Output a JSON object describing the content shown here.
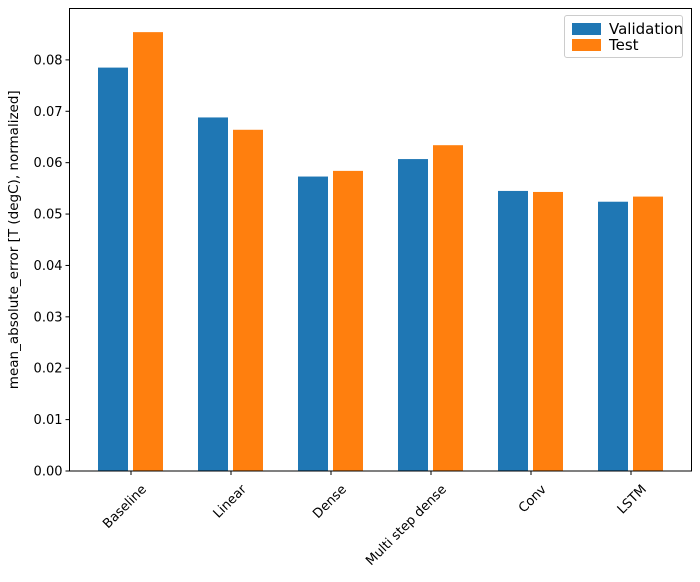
{
  "figure": {
    "background": "#ffffff",
    "spine_color": "#000000",
    "tick_color": "#000000",
    "text_color": "#000000"
  },
  "legend": {
    "position": "upper right",
    "border_color": "#cccccc"
  },
  "chart_data": {
    "type": "bar",
    "title": "",
    "xlabel": "",
    "ylabel": "mean_absolute_error [T (degC), normalized]",
    "categories": [
      "Baseline",
      "Linear",
      "Dense",
      "Multi step dense",
      "Conv",
      "LSTM"
    ],
    "series": [
      {
        "name": "Validation",
        "color": "#1f77b4",
        "values": [
          0.0785,
          0.0688,
          0.0573,
          0.0607,
          0.0545,
          0.0524
        ]
      },
      {
        "name": "Test",
        "color": "#ff7f0e",
        "values": [
          0.0854,
          0.0664,
          0.0584,
          0.0634,
          0.0543,
          0.0534
        ]
      }
    ],
    "ylim": [
      0,
      0.09
    ],
    "yticks": [
      "0.00",
      "0.01",
      "0.02",
      "0.03",
      "0.04",
      "0.05",
      "0.06",
      "0.07",
      "0.08"
    ],
    "ytick_values": [
      0.0,
      0.01,
      0.02,
      0.03,
      0.04,
      0.05,
      0.06,
      0.07,
      0.08
    ],
    "xtick_rotation_deg": 45,
    "grid": false,
    "legend_position": "upper right"
  }
}
